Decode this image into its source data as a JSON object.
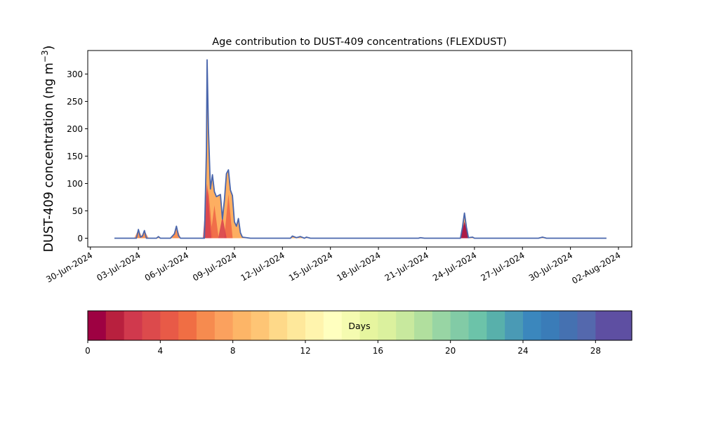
{
  "chart_data": {
    "type": "area",
    "title": "Age contribution to DUST-409 concentrations (FLEXDUST)",
    "ylabel": "DUST-409 concentration (ng m",
    "ylabel_unit_exponent": "−3",
    "ylabel_close": ")",
    "ylim": [
      -16,
      343
    ],
    "yticks": [
      0,
      50,
      100,
      150,
      200,
      250,
      300
    ],
    "xlim": [
      "2024-06-29T20:00",
      "2024-08-02T20:00"
    ],
    "xticks": [
      {
        "date": "2024-06-30",
        "label": "30-Jun-2024"
      },
      {
        "date": "2024-07-03",
        "label": "03-Jul-2024"
      },
      {
        "date": "2024-07-06",
        "label": "06-Jul-2024"
      },
      {
        "date": "2024-07-09",
        "label": "09-Jul-2024"
      },
      {
        "date": "2024-07-12",
        "label": "12-Jul-2024"
      },
      {
        "date": "2024-07-15",
        "label": "15-Jul-2024"
      },
      {
        "date": "2024-07-18",
        "label": "18-Jul-2024"
      },
      {
        "date": "2024-07-21",
        "label": "21-Jul-2024"
      },
      {
        "date": "2024-07-24",
        "label": "24-Jul-2024"
      },
      {
        "date": "2024-07-27",
        "label": "27-Jul-2024"
      },
      {
        "date": "2024-07-30",
        "label": "30-Jul-2024"
      },
      {
        "date": "2024-08-02",
        "label": "02-Aug-2024"
      }
    ],
    "series": [
      {
        "color": "#4a66ac",
        "points": [
          [
            "2024-07-01T12:00",
            0
          ],
          [
            "2024-07-02T21:00",
            0
          ],
          [
            "2024-07-03T00:00",
            16
          ],
          [
            "2024-07-03T03:00",
            2
          ],
          [
            "2024-07-03T06:00",
            4
          ],
          [
            "2024-07-03T09:00",
            14
          ],
          [
            "2024-07-03T12:00",
            0
          ],
          [
            "2024-07-04T03:00",
            0
          ],
          [
            "2024-07-04T06:00",
            3
          ],
          [
            "2024-07-04T09:00",
            0
          ],
          [
            "2024-07-05T00:00",
            0
          ],
          [
            "2024-07-05T06:00",
            8
          ],
          [
            "2024-07-05T09:00",
            22
          ],
          [
            "2024-07-05T12:00",
            5
          ],
          [
            "2024-07-05T15:00",
            0
          ],
          [
            "2024-07-07T03:00",
            0
          ],
          [
            "2024-07-07T06:00",
            160
          ],
          [
            "2024-07-07T07:00",
            326
          ],
          [
            "2024-07-07T09:00",
            200
          ],
          [
            "2024-07-07T12:00",
            90
          ],
          [
            "2024-07-07T15:00",
            116
          ],
          [
            "2024-07-07T18:00",
            85
          ],
          [
            "2024-07-07T21:00",
            76
          ],
          [
            "2024-07-08T00:00",
            78
          ],
          [
            "2024-07-08T03:00",
            80
          ],
          [
            "2024-07-08T06:00",
            35
          ],
          [
            "2024-07-08T09:00",
            70
          ],
          [
            "2024-07-08T12:00",
            118
          ],
          [
            "2024-07-08T15:00",
            125
          ],
          [
            "2024-07-08T18:00",
            88
          ],
          [
            "2024-07-08T21:00",
            78
          ],
          [
            "2024-07-09T00:00",
            30
          ],
          [
            "2024-07-09T03:00",
            22
          ],
          [
            "2024-07-09T06:00",
            36
          ],
          [
            "2024-07-09T09:00",
            10
          ],
          [
            "2024-07-09T12:00",
            2
          ],
          [
            "2024-07-10T00:00",
            0
          ],
          [
            "2024-07-12T12:00",
            0
          ],
          [
            "2024-07-12T15:00",
            4
          ],
          [
            "2024-07-12T21:00",
            1
          ],
          [
            "2024-07-13T03:00",
            3
          ],
          [
            "2024-07-13T09:00",
            0
          ],
          [
            "2024-07-13T12:00",
            2
          ],
          [
            "2024-07-13T18:00",
            0
          ],
          [
            "2024-07-20T12:00",
            0
          ],
          [
            "2024-07-20T15:00",
            1
          ],
          [
            "2024-07-20T21:00",
            0
          ],
          [
            "2024-07-23T03:00",
            0
          ],
          [
            "2024-07-23T06:00",
            20
          ],
          [
            "2024-07-23T09:00",
            46
          ],
          [
            "2024-07-23T12:00",
            20
          ],
          [
            "2024-07-23T15:00",
            1
          ],
          [
            "2024-07-23T21:00",
            2
          ],
          [
            "2024-07-24T00:00",
            0
          ],
          [
            "2024-07-28T00:00",
            0
          ],
          [
            "2024-07-28T06:00",
            2
          ],
          [
            "2024-07-28T12:00",
            0
          ],
          [
            "2024-08-01T06:00",
            0
          ]
        ]
      }
    ],
    "inner_bands": [
      {
        "color": "#f88d52",
        "peaks": [
          [
            "2024-07-03T00:00",
            16
          ],
          [
            "2024-07-03T09:00",
            14
          ],
          [
            "2024-07-05T09:00",
            22
          ]
        ]
      },
      {
        "color": "#ee6445",
        "peaks": [
          [
            "2024-07-07T09:00",
            90
          ],
          [
            "2024-07-07T18:00",
            60
          ],
          [
            "2024-07-08T15:00",
            80
          ]
        ]
      },
      {
        "color": "#d73f4f",
        "peaks": [
          [
            "2024-07-07T07:00",
            100
          ],
          [
            "2024-07-08T06:00",
            40
          ]
        ]
      },
      {
        "color": "#9e0142",
        "peaks": [
          [
            "2024-07-23T09:00",
            30
          ]
        ]
      }
    ],
    "colorbar": {
      "label": "Days",
      "min": 0,
      "max": 30,
      "ticks": [
        0,
        4,
        8,
        12,
        16,
        20,
        24,
        28
      ],
      "colors": [
        "#9e0142",
        "#b8203e",
        "#d0394d",
        "#dc4a4c",
        "#e85a47",
        "#f06e44",
        "#f68b4f",
        "#fba15e",
        "#fdb567",
        "#fec575",
        "#fed989",
        "#fee89b",
        "#fff4ad",
        "#ffffbf",
        "#f5fbb0",
        "#e6f59f",
        "#dbf19e",
        "#c8e99e",
        "#b1df9e",
        "#98d5a4",
        "#82cba6",
        "#6cc3a9",
        "#58b0ab",
        "#4a9ab5",
        "#3b87bd",
        "#3a7cb8",
        "#4571b1",
        "#5468ad",
        "#5e4fa2",
        "#5e4fa2"
      ]
    }
  }
}
